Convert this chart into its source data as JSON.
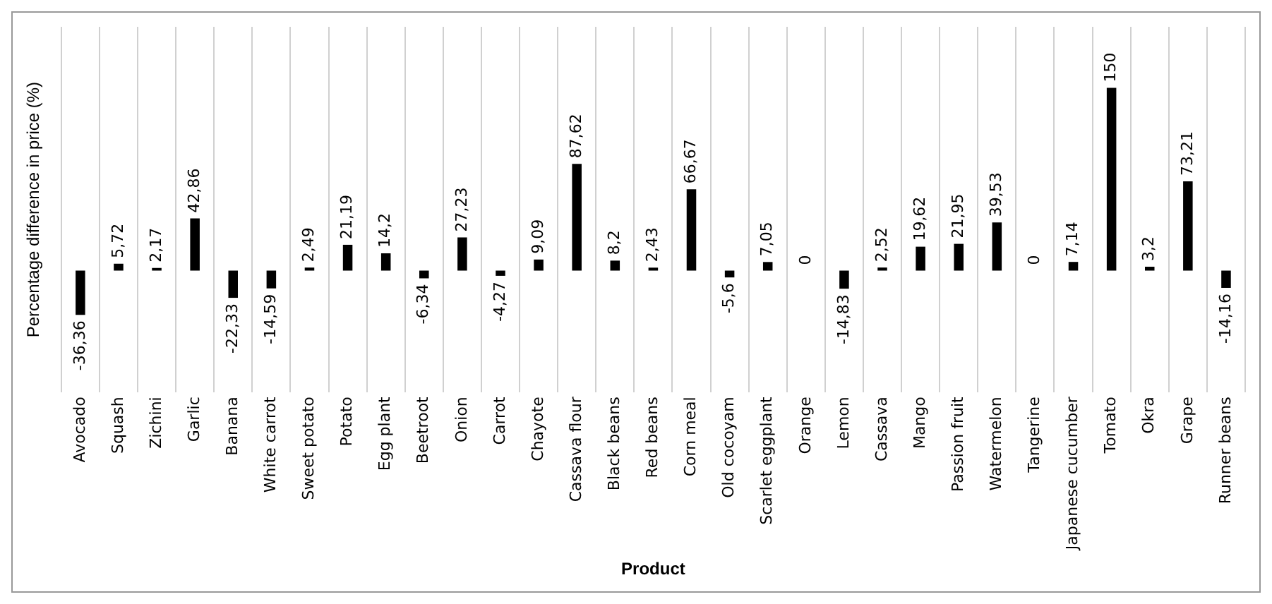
{
  "chart_data": {
    "type": "bar",
    "xlabel": "Product",
    "ylabel": "Percentage difference in price (%)",
    "categories": [
      "Avocado",
      "Squash",
      "Zichini",
      "Garlic",
      "Banana",
      "White carrot",
      "Sweet potato",
      "Potato",
      "Egg plant",
      "Beetroot",
      "Onion",
      "Carrot",
      "Chayote",
      "Cassava flour",
      "Black beans",
      "Red beans",
      "Corn meal",
      "Old cocoyam",
      "Scarlet eggplant",
      "Orange",
      "Lemon",
      "Cassava",
      "Mango",
      "Passion fruit",
      "Watermelon",
      "Tangerine",
      "Japanese cucumber",
      "Tomato",
      "Okra",
      "Grape",
      "Runner beans"
    ],
    "values": [
      -36.36,
      5.72,
      2.17,
      42.86,
      -22.33,
      -14.59,
      2.49,
      21.19,
      14.2,
      -6.34,
      27.23,
      -4.27,
      9.09,
      87.62,
      8.2,
      2.43,
      66.67,
      -5.6,
      7.05,
      0,
      -14.83,
      2.52,
      19.62,
      21.95,
      39.53,
      0,
      7.14,
      150,
      3.2,
      73.21,
      -14.16
    ],
    "value_labels": [
      "-36,36",
      "5,72",
      "2,17",
      "42,86",
      "-22,33",
      "-14,59",
      "2,49",
      "21,19",
      "14,2",
      "-6,34",
      "27,23",
      "-4,27",
      "9,09",
      "87,62",
      "8,2",
      "2,43",
      "66,67",
      "-5,6",
      "7,05",
      "0",
      "-14,83",
      "2,52",
      "19,62",
      "21,95",
      "39,53",
      "0",
      "7,14",
      "150",
      "3,2",
      "73,21",
      "-14,16"
    ],
    "color": "#000000",
    "grid": "x",
    "tick_labels": "x"
  }
}
